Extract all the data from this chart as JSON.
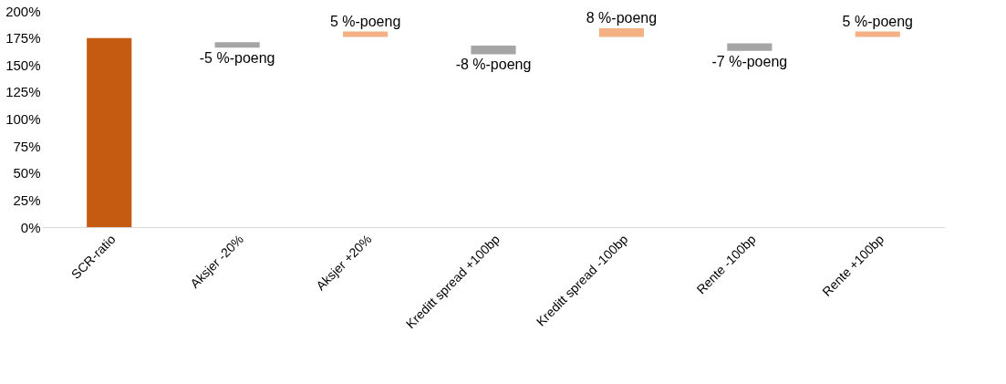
{
  "chart_data": {
    "type": "bar",
    "categories": [
      "SCR-ratio",
      "Aksjer -20%",
      "Aksjer +20%",
      "Kreditt spread +100bp",
      "Kreditt spread -100bp",
      "Rente -100bp",
      "Rente +100bp"
    ],
    "values": [
      175,
      -5,
      5,
      -8,
      8,
      -7,
      5
    ],
    "base": [
      0,
      171,
      176,
      168,
      176,
      170,
      176
    ],
    "colors": [
      "#c55a11",
      "#a5a5a5",
      "#f4b183",
      "#a5a5a5",
      "#f4b183",
      "#a5a5a5",
      "#f4b183"
    ],
    "value_labels": [
      null,
      "-5 %-poeng",
      "5 %-poeng",
      "-8 %-poeng",
      "8 %-poeng",
      "-7 %-poeng",
      "5 %-poeng"
    ],
    "ylim": [
      0,
      200
    ],
    "yticks": [
      {
        "value": 0,
        "label": "0%"
      },
      {
        "value": 25,
        "label": "25%"
      },
      {
        "value": 50,
        "label": "50%"
      },
      {
        "value": 75,
        "label": "75%"
      },
      {
        "value": 100,
        "label": "100%"
      },
      {
        "value": 125,
        "label": "125%"
      },
      {
        "value": 150,
        "label": "150%"
      },
      {
        "value": 175,
        "label": "175%"
      },
      {
        "value": 200,
        "label": "200%"
      }
    ],
    "grid": false
  }
}
